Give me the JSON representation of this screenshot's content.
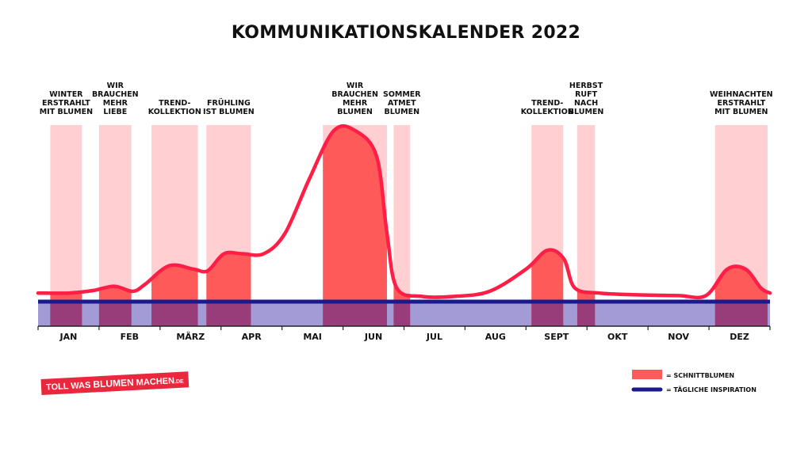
{
  "chart_data": {
    "type": "area",
    "title": "KOMMUNIKATIONSKALENDER 2022",
    "months": [
      "JAN",
      "FEB",
      "MÄRZ",
      "APR",
      "MAI",
      "JUN",
      "JUL",
      "AUG",
      "SEPT",
      "OKT",
      "NOV",
      "DEZ"
    ],
    "campaigns": [
      {
        "lines": [
          "WINTER",
          "ERSTRAHLT",
          "MIT BLUMEN"
        ],
        "start": 0.2,
        "end": 0.72
      },
      {
        "lines": [
          "WIR",
          "BRAUCHEN",
          "MEHR",
          "LIEBE"
        ],
        "start": 1.0,
        "end": 1.53
      },
      {
        "lines": [
          "TREND-",
          "KOLLEKTION"
        ],
        "start": 1.86,
        "end": 2.62
      },
      {
        "lines": [
          "FRÜHLING",
          "IST BLUMEN"
        ],
        "start": 2.76,
        "end": 3.49
      },
      {
        "lines": [
          "WIR",
          "BRAUCHEN",
          "MEHR",
          "BLUMEN"
        ],
        "start": 4.67,
        "end": 5.72
      },
      {
        "lines": [
          "SOMMER",
          "ATMET",
          "BLUMEN"
        ],
        "start": 5.83,
        "end": 6.1
      },
      {
        "lines": [
          "TREND-",
          "KOLLEKTION"
        ],
        "start": 8.09,
        "end": 8.61
      },
      {
        "lines": [
          "HERBST",
          "RUFT",
          "NACH",
          "BLUMEN"
        ],
        "start": 8.84,
        "end": 9.13
      },
      {
        "lines": [
          "WEIHNACHTEN",
          "ERSTRAHLT",
          "MIT BLUMEN"
        ],
        "start": 11.1,
        "end": 11.96
      }
    ],
    "series": [
      {
        "name": "SCHNITTBLUMEN",
        "color": "#ff1e46",
        "points": [
          [
            0.0,
            5
          ],
          [
            0.5,
            5
          ],
          [
            0.9,
            6.5
          ],
          [
            1.25,
            9
          ],
          [
            1.55,
            6
          ],
          [
            1.75,
            10
          ],
          [
            2.15,
            21
          ],
          [
            2.55,
            19
          ],
          [
            2.78,
            18
          ],
          [
            3.05,
            28
          ],
          [
            3.35,
            28
          ],
          [
            3.7,
            28
          ],
          [
            4.05,
            40
          ],
          [
            4.45,
            72
          ],
          [
            4.85,
            100
          ],
          [
            5.2,
            100
          ],
          [
            5.55,
            85
          ],
          [
            5.72,
            40
          ],
          [
            5.88,
            8
          ],
          [
            6.3,
            3
          ],
          [
            6.8,
            3
          ],
          [
            7.4,
            6
          ],
          [
            8.0,
            19
          ],
          [
            8.35,
            30
          ],
          [
            8.62,
            25
          ],
          [
            8.8,
            8
          ],
          [
            9.2,
            5
          ],
          [
            9.8,
            4
          ],
          [
            10.5,
            3.5
          ],
          [
            10.95,
            3.5
          ],
          [
            11.3,
            19
          ],
          [
            11.6,
            19
          ],
          [
            11.85,
            8
          ],
          [
            12.0,
            5
          ]
        ]
      },
      {
        "name": "TÄGLICHE INSPIRATION",
        "color": "#1a1a8c",
        "points": [
          [
            0,
            0
          ],
          [
            12,
            0
          ]
        ]
      }
    ],
    "legend": [
      {
        "label": "= SCHNITTBLUMEN",
        "color": "#ff5a5a"
      },
      {
        "label": "= TÄGLICHE INSPIRATION",
        "color": "#1a1a8c"
      }
    ],
    "colors": {
      "campaign_light": "#ffcfd2",
      "campaign_dark": "#ff5a5a",
      "base_band": "#a39bd6",
      "base_band_dark": "#993c7a",
      "line": "#ff1e46",
      "baseline": "#1a1a8c",
      "axis": "#222222"
    }
  },
  "logo": {
    "part1": "TOLL WAS ",
    "part2": "BLUMEN",
    "part3": " MACHEN",
    "tld": ".DE"
  }
}
